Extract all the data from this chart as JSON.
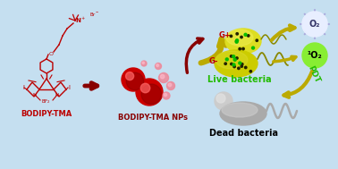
{
  "bg_top": "#c5dff0",
  "bg_bottom": "#ddeeff",
  "border_color": "#8ab0cc",
  "bodipy_label": "BODIPY-TMA",
  "np_label": "BODIPY-TMA NPs",
  "live_label": "Live bacteria",
  "dead_label": "Dead bacteria",
  "gplus": "G+",
  "gminus": "G-",
  "o2": "O₂",
  "singlet_o2": "¹O₂",
  "pdt": "PDT",
  "crimson": "#BB0000",
  "dark_red": "#880000",
  "red_sphere": "#CC0000",
  "pink_dot": "#EE8899",
  "yellow_bact": "#DDDD00",
  "yellow_bact2": "#CCCC00",
  "green_label": "#22BB00",
  "green_bright": "#88DD00",
  "arrow_yellow": "#BBAA00",
  "arrow_dark": "#887700",
  "gray1": "#AAAAAA",
  "gray2": "#CCCCCC",
  "gray3": "#E0E0E0",
  "o2_bg": "#E8EEFF",
  "o2_edge": "#AAAADD",
  "singlet_bg": "#88EE33",
  "black": "#000000",
  "white": "#FFFFFF"
}
